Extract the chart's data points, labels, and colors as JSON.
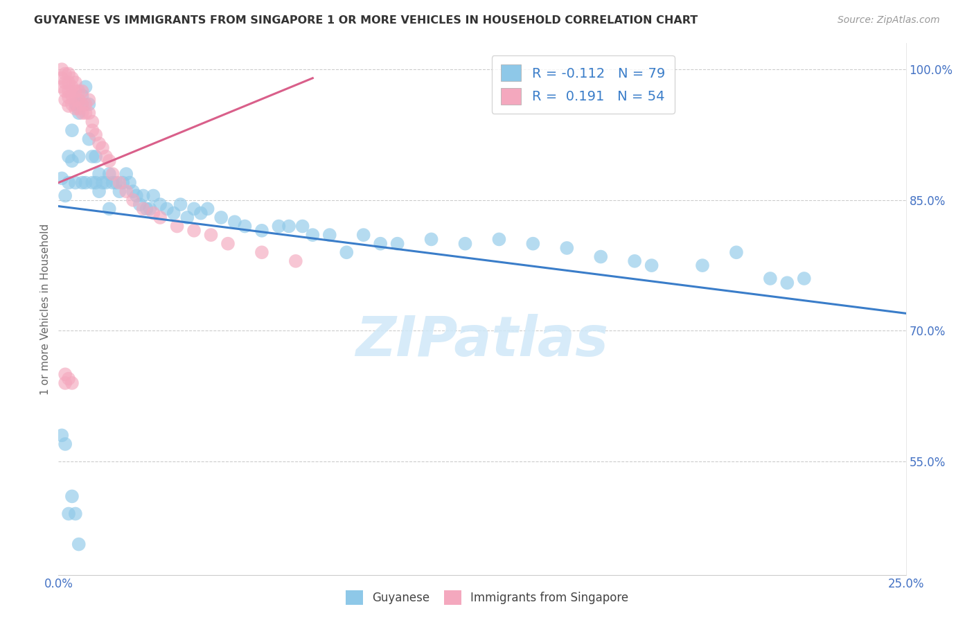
{
  "title": "GUYANESE VS IMMIGRANTS FROM SINGAPORE 1 OR MORE VEHICLES IN HOUSEHOLD CORRELATION CHART",
  "source": "Source: ZipAtlas.com",
  "ylabel": "1 or more Vehicles in Household",
  "xlim": [
    0.0,
    0.25
  ],
  "ylim": [
    0.42,
    1.03
  ],
  "xticks": [
    0.0,
    0.05,
    0.1,
    0.15,
    0.2,
    0.25
  ],
  "xticklabels": [
    "0.0%",
    "",
    "",
    "",
    "",
    "25.0%"
  ],
  "yticks": [
    0.55,
    0.7,
    0.85,
    1.0
  ],
  "yticklabels": [
    "55.0%",
    "70.0%",
    "85.0%",
    "100.0%"
  ],
  "legend_R": [
    "-0.112",
    "0.191"
  ],
  "legend_N": [
    "79",
    "54"
  ],
  "blue_color": "#8ec8e8",
  "pink_color": "#f4a8be",
  "blue_line_color": "#3a7dc9",
  "pink_line_color": "#d95f8a",
  "watermark_color": "#d0e8f8",
  "blue_x": [
    0.001,
    0.002,
    0.003,
    0.003,
    0.004,
    0.004,
    0.005,
    0.005,
    0.006,
    0.006,
    0.007,
    0.007,
    0.008,
    0.008,
    0.009,
    0.009,
    0.01,
    0.01,
    0.011,
    0.011,
    0.012,
    0.012,
    0.013,
    0.014,
    0.015,
    0.015,
    0.016,
    0.017,
    0.018,
    0.019,
    0.02,
    0.021,
    0.022,
    0.023,
    0.024,
    0.025,
    0.026,
    0.027,
    0.028,
    0.03,
    0.032,
    0.034,
    0.036,
    0.038,
    0.04,
    0.042,
    0.044,
    0.048,
    0.052,
    0.055,
    0.06,
    0.065,
    0.068,
    0.072,
    0.075,
    0.08,
    0.085,
    0.09,
    0.095,
    0.1,
    0.11,
    0.12,
    0.13,
    0.14,
    0.15,
    0.16,
    0.17,
    0.175,
    0.19,
    0.2,
    0.21,
    0.215,
    0.22,
    0.001,
    0.002,
    0.003,
    0.004,
    0.005,
    0.006
  ],
  "blue_y": [
    0.875,
    0.855,
    0.9,
    0.87,
    0.93,
    0.895,
    0.96,
    0.87,
    0.95,
    0.9,
    0.97,
    0.87,
    0.98,
    0.87,
    0.96,
    0.92,
    0.9,
    0.87,
    0.9,
    0.87,
    0.88,
    0.86,
    0.87,
    0.87,
    0.88,
    0.84,
    0.87,
    0.87,
    0.86,
    0.87,
    0.88,
    0.87,
    0.86,
    0.855,
    0.845,
    0.855,
    0.84,
    0.84,
    0.855,
    0.845,
    0.84,
    0.835,
    0.845,
    0.83,
    0.84,
    0.835,
    0.84,
    0.83,
    0.825,
    0.82,
    0.815,
    0.82,
    0.82,
    0.82,
    0.81,
    0.81,
    0.79,
    0.81,
    0.8,
    0.8,
    0.805,
    0.8,
    0.805,
    0.8,
    0.795,
    0.785,
    0.78,
    0.775,
    0.775,
    0.79,
    0.76,
    0.755,
    0.76,
    0.58,
    0.57,
    0.49,
    0.51,
    0.49,
    0.455
  ],
  "pink_x": [
    0.001,
    0.001,
    0.001,
    0.002,
    0.002,
    0.002,
    0.002,
    0.003,
    0.003,
    0.003,
    0.003,
    0.003,
    0.004,
    0.004,
    0.004,
    0.004,
    0.005,
    0.005,
    0.005,
    0.005,
    0.006,
    0.006,
    0.006,
    0.007,
    0.007,
    0.007,
    0.008,
    0.008,
    0.009,
    0.009,
    0.01,
    0.01,
    0.011,
    0.012,
    0.013,
    0.014,
    0.015,
    0.016,
    0.018,
    0.02,
    0.022,
    0.025,
    0.028,
    0.03,
    0.035,
    0.04,
    0.045,
    0.05,
    0.06,
    0.07,
    0.002,
    0.002,
    0.003,
    0.004
  ],
  "pink_y": [
    1.0,
    0.99,
    0.98,
    0.995,
    0.985,
    0.975,
    0.965,
    0.995,
    0.985,
    0.975,
    0.968,
    0.958,
    0.99,
    0.98,
    0.97,
    0.96,
    0.985,
    0.975,
    0.965,
    0.955,
    0.975,
    0.965,
    0.955,
    0.975,
    0.96,
    0.95,
    0.96,
    0.95,
    0.965,
    0.95,
    0.94,
    0.93,
    0.925,
    0.915,
    0.91,
    0.9,
    0.895,
    0.88,
    0.87,
    0.86,
    0.85,
    0.84,
    0.835,
    0.83,
    0.82,
    0.815,
    0.81,
    0.8,
    0.79,
    0.78,
    0.65,
    0.64,
    0.645,
    0.64
  ],
  "blue_trend_x": [
    0.0,
    0.25
  ],
  "blue_trend_y": [
    0.843,
    0.72
  ],
  "pink_trend_x": [
    0.0,
    0.075
  ],
  "pink_trend_y": [
    0.87,
    0.99
  ]
}
